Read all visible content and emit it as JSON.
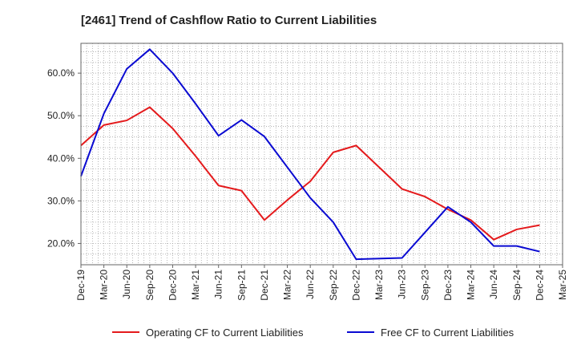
{
  "chart_data": {
    "type": "line",
    "title": "[2461]  Trend of Cashflow Ratio to Current Liabilities",
    "xlabel": "",
    "ylabel": "",
    "x": [
      "Dec-19",
      "Mar-20",
      "Jun-20",
      "Sep-20",
      "Dec-20",
      "Mar-21",
      "Jun-21",
      "Sep-21",
      "Dec-21",
      "Mar-22",
      "Jun-22",
      "Sep-22",
      "Dec-22",
      "Mar-23",
      "Jun-23",
      "Sep-23",
      "Dec-23",
      "Mar-24",
      "Jun-24",
      "Sep-24",
      "Dec-24",
      "Mar-25"
    ],
    "ylim": [
      15,
      67
    ],
    "yticks": [
      20,
      30,
      40,
      50,
      60
    ],
    "ytick_labels": [
      "20.0%",
      "30.0%",
      "40.0%",
      "50.0%",
      "60.0%"
    ],
    "grid": true,
    "legend_position": "bottom",
    "series": [
      {
        "name": "Operating CF to Current Liabilities",
        "color": "#e41a1c",
        "values": [
          43.0,
          47.8,
          48.9,
          52.0,
          47.0,
          40.5,
          33.6,
          32.4,
          25.5,
          30.2,
          34.6,
          41.4,
          43.0,
          null,
          32.8,
          31.0,
          28.0,
          25.5,
          20.9,
          23.3,
          24.3,
          null
        ]
      },
      {
        "name": "Free CF to Current Liabilities",
        "color": "#0a0ad2",
        "values": [
          35.8,
          50.5,
          61.0,
          65.6,
          60.0,
          52.8,
          45.3,
          49.0,
          45.1,
          null,
          30.7,
          25.0,
          16.3,
          null,
          16.6,
          22.6,
          28.6,
          25.0,
          19.4,
          19.4,
          18.1,
          null
        ]
      }
    ]
  }
}
